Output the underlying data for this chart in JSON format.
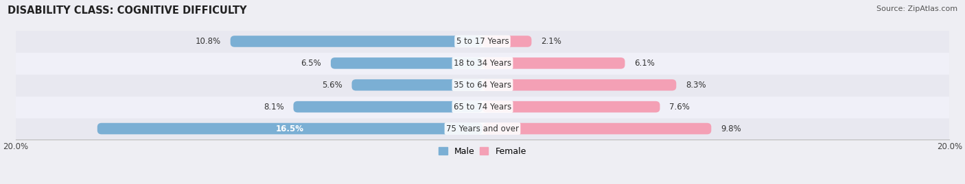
{
  "title": "DISABILITY CLASS: COGNITIVE DIFFICULTY",
  "source": "Source: ZipAtlas.com",
  "categories": [
    "5 to 17 Years",
    "18 to 34 Years",
    "35 to 64 Years",
    "65 to 74 Years",
    "75 Years and over"
  ],
  "male_values": [
    10.8,
    6.5,
    5.6,
    8.1,
    16.5
  ],
  "female_values": [
    2.1,
    6.1,
    8.3,
    7.6,
    9.8
  ],
  "male_labels": [
    "10.8%",
    "6.5%",
    "5.6%",
    "8.1%",
    "16.5%"
  ],
  "female_labels": [
    "2.1%",
    "6.1%",
    "8.3%",
    "7.6%",
    "9.8%"
  ],
  "male_color": "#7bafd4",
  "female_color": "#f4a0b5",
  "axis_limit": 20.0,
  "x_tick_labels": [
    "20.0%",
    "20.0%"
  ],
  "bar_height": 0.52,
  "bg_color": "#eeeef3",
  "row_bg_even": "#e8e8f0",
  "row_bg_odd": "#f0f0f8",
  "title_fontsize": 10.5,
  "source_fontsize": 8,
  "label_fontsize": 8.5,
  "category_fontsize": 8.5,
  "legend_fontsize": 9,
  "title_color": "#222222",
  "source_color": "#555555",
  "label_color": "#333333",
  "category_color": "#333333",
  "inside_label_color": "#ffffff"
}
